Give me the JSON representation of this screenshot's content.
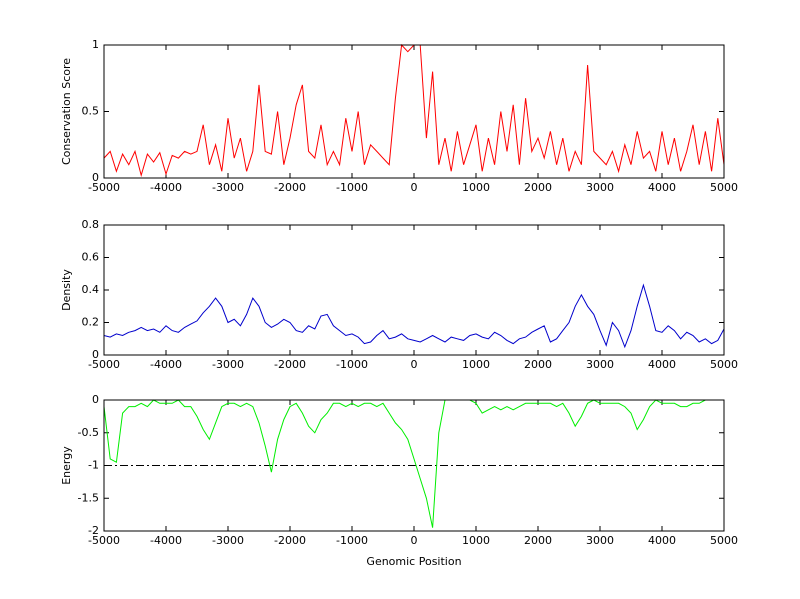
{
  "chart_data": [
    {
      "type": "line",
      "ylabel": "Conservation Score",
      "xlim": [
        -5000,
        5000
      ],
      "xticks": [
        -5000,
        -4000,
        -3000,
        -2000,
        -1000,
        0,
        1000,
        2000,
        3000,
        4000,
        5000
      ],
      "ylim": [
        0,
        1
      ],
      "yticks": [
        0,
        0.5,
        1
      ],
      "x": [
        -5000,
        -4900,
        -4800,
        -4700,
        -4600,
        -4500,
        -4400,
        -4300,
        -4200,
        -4100,
        -4000,
        -3900,
        -3800,
        -3700,
        -3600,
        -3500,
        -3400,
        -3300,
        -3200,
        -3100,
        -3000,
        -2900,
        -2800,
        -2700,
        -2600,
        -2500,
        -2400,
        -2300,
        -2200,
        -2100,
        -2000,
        -1900,
        -1800,
        -1700,
        -1600,
        -1500,
        -1400,
        -1300,
        -1200,
        -1100,
        -1000,
        -900,
        -800,
        -700,
        -600,
        -500,
        -400,
        -300,
        -200,
        -100,
        0,
        100,
        200,
        300,
        400,
        500,
        600,
        700,
        800,
        900,
        1000,
        1100,
        1200,
        1300,
        1400,
        1500,
        1600,
        1700,
        1800,
        1900,
        2000,
        2100,
        2200,
        2300,
        2400,
        2500,
        2600,
        2700,
        2800,
        2900,
        3000,
        3100,
        3200,
        3300,
        3400,
        3500,
        3600,
        3700,
        3800,
        3900,
        4000,
        4100,
        4200,
        4300,
        4400,
        4500,
        4600,
        4700,
        4800,
        4900,
        5000
      ],
      "series": [
        {
          "color": "#ff0000",
          "values": [
            0.15,
            0.2,
            0.05,
            0.18,
            0.1,
            0.2,
            0.02,
            0.18,
            0.12,
            0.19,
            0.03,
            0.17,
            0.15,
            0.2,
            0.18,
            0.2,
            0.4,
            0.1,
            0.25,
            0.05,
            0.45,
            0.15,
            0.3,
            0.05,
            0.2,
            0.7,
            0.2,
            0.18,
            0.5,
            0.1,
            0.3,
            0.55,
            0.7,
            0.2,
            0.15,
            0.4,
            0.1,
            0.2,
            0.1,
            0.45,
            0.2,
            0.5,
            0.1,
            0.25,
            0.2,
            0.15,
            0.1,
            0.6,
            1,
            0.95,
            1,
            1,
            0.3,
            0.8,
            0.1,
            0.3,
            0.05,
            0.35,
            0.1,
            0.25,
            0.4,
            0.05,
            0.3,
            0.1,
            0.5,
            0.2,
            0.55,
            0.1,
            0.6,
            0.2,
            0.3,
            0.15,
            0.35,
            0.1,
            0.3,
            0.05,
            0.2,
            0.1,
            0.85,
            0.2,
            0.15,
            0.1,
            0.2,
            0.05,
            0.25,
            0.1,
            0.35,
            0.15,
            0.2,
            0.05,
            0.35,
            0.1,
            0.3,
            0.05,
            0.2,
            0.4,
            0.1,
            0.35,
            0.05,
            0.45,
            0.1
          ]
        }
      ]
    },
    {
      "type": "line",
      "ylabel": "Density",
      "xlim": [
        -5000,
        5000
      ],
      "xticks": [
        -5000,
        -4000,
        -3000,
        -2000,
        -1000,
        0,
        1000,
        2000,
        3000,
        4000,
        5000
      ],
      "ylim": [
        0,
        0.8
      ],
      "yticks": [
        0,
        0.2,
        0.4,
        0.6,
        0.8
      ],
      "x": [
        -5000,
        -4900,
        -4800,
        -4700,
        -4600,
        -4500,
        -4400,
        -4300,
        -4200,
        -4100,
        -4000,
        -3900,
        -3800,
        -3700,
        -3600,
        -3500,
        -3400,
        -3300,
        -3200,
        -3100,
        -3000,
        -2900,
        -2800,
        -2700,
        -2600,
        -2500,
        -2400,
        -2300,
        -2200,
        -2100,
        -2000,
        -1900,
        -1800,
        -1700,
        -1600,
        -1500,
        -1400,
        -1300,
        -1200,
        -1100,
        -1000,
        -900,
        -800,
        -700,
        -600,
        -500,
        -400,
        -300,
        -200,
        -100,
        0,
        100,
        200,
        300,
        400,
        500,
        600,
        700,
        800,
        900,
        1000,
        1100,
        1200,
        1300,
        1400,
        1500,
        1600,
        1700,
        1800,
        1900,
        2000,
        2100,
        2200,
        2300,
        2400,
        2500,
        2600,
        2700,
        2800,
        2900,
        3000,
        3100,
        3200,
        3300,
        3400,
        3500,
        3600,
        3700,
        3800,
        3900,
        4000,
        4100,
        4200,
        4300,
        4400,
        4500,
        4600,
        4700,
        4800,
        4900,
        5000
      ],
      "series": [
        {
          "color": "#0000cc",
          "values": [
            0.12,
            0.11,
            0.13,
            0.12,
            0.14,
            0.15,
            0.17,
            0.15,
            0.16,
            0.14,
            0.18,
            0.15,
            0.14,
            0.17,
            0.19,
            0.21,
            0.26,
            0.3,
            0.35,
            0.3,
            0.2,
            0.22,
            0.18,
            0.25,
            0.35,
            0.3,
            0.2,
            0.17,
            0.19,
            0.22,
            0.2,
            0.15,
            0.14,
            0.18,
            0.16,
            0.24,
            0.25,
            0.18,
            0.15,
            0.12,
            0.13,
            0.11,
            0.07,
            0.08,
            0.12,
            0.15,
            0.1,
            0.11,
            0.13,
            0.1,
            0.09,
            0.08,
            0.1,
            0.12,
            0.1,
            0.08,
            0.11,
            0.1,
            0.09,
            0.12,
            0.13,
            0.11,
            0.1,
            0.14,
            0.12,
            0.09,
            0.07,
            0.1,
            0.11,
            0.14,
            0.16,
            0.18,
            0.08,
            0.1,
            0.15,
            0.2,
            0.3,
            0.37,
            0.3,
            0.25,
            0.15,
            0.06,
            0.2,
            0.15,
            0.05,
            0.15,
            0.3,
            0.43,
            0.3,
            0.15,
            0.14,
            0.18,
            0.15,
            0.1,
            0.14,
            0.12,
            0.08,
            0.1,
            0.07,
            0.09,
            0.16
          ]
        }
      ]
    },
    {
      "type": "line",
      "ylabel": "Energy",
      "xlabel": "Genomic Position",
      "xlim": [
        -5000,
        5000
      ],
      "xticks": [
        -5000,
        -4000,
        -3000,
        -2000,
        -1000,
        0,
        1000,
        2000,
        3000,
        4000,
        5000
      ],
      "ylim": [
        -2,
        0
      ],
      "yticks": [
        -2,
        -1.5,
        -1,
        -0.5,
        0
      ],
      "reference_line": -1,
      "x": [
        -5000,
        -4900,
        -4800,
        -4700,
        -4600,
        -4500,
        -4400,
        -4300,
        -4200,
        -4100,
        -4000,
        -3900,
        -3800,
        -3700,
        -3600,
        -3500,
        -3400,
        -3300,
        -3200,
        -3100,
        -3000,
        -2900,
        -2800,
        -2700,
        -2600,
        -2500,
        -2400,
        -2300,
        -2200,
        -2100,
        -2000,
        -1900,
        -1800,
        -1700,
        -1600,
        -1500,
        -1400,
        -1300,
        -1200,
        -1100,
        -1000,
        -900,
        -800,
        -700,
        -600,
        -500,
        -400,
        -300,
        -200,
        -100,
        0,
        100,
        200,
        300,
        400,
        500,
        600,
        700,
        800,
        900,
        1000,
        1100,
        1200,
        1300,
        1400,
        1500,
        1600,
        1700,
        1800,
        1900,
        2000,
        2100,
        2200,
        2300,
        2400,
        2500,
        2600,
        2700,
        2800,
        2900,
        3000,
        3100,
        3200,
        3300,
        3400,
        3500,
        3600,
        3700,
        3800,
        3900,
        4000,
        4100,
        4200,
        4300,
        4400,
        4500,
        4600,
        4700,
        4800,
        4900,
        5000
      ],
      "series": [
        {
          "color": "#00ee00",
          "values": [
            -0.1,
            -0.9,
            -0.95,
            -0.2,
            -0.1,
            -0.1,
            -0.05,
            -0.1,
            0,
            -0.05,
            -0.05,
            -0.05,
            0,
            -0.1,
            -0.1,
            -0.25,
            -0.45,
            -0.6,
            -0.35,
            -0.1,
            -0.05,
            -0.05,
            -0.1,
            -0.05,
            -0.1,
            -0.35,
            -0.7,
            -1.1,
            -0.6,
            -0.3,
            -0.1,
            -0.05,
            -0.2,
            -0.4,
            -0.5,
            -0.3,
            -0.2,
            -0.05,
            -0.05,
            -0.1,
            -0.05,
            -0.1,
            -0.05,
            -0.05,
            -0.1,
            -0.05,
            -0.2,
            -0.35,
            -0.45,
            -0.6,
            -0.9,
            -1.2,
            -1.5,
            -1.95,
            -0.5,
            0,
            0,
            0,
            0,
            0,
            -0.05,
            -0.2,
            -0.15,
            -0.1,
            -0.15,
            -0.1,
            -0.15,
            -0.1,
            -0.05,
            -0.05,
            -0.05,
            -0.05,
            -0.05,
            -0.1,
            -0.05,
            -0.2,
            -0.4,
            -0.25,
            -0.05,
            0,
            -0.05,
            -0.05,
            -0.05,
            -0.05,
            -0.1,
            -0.2,
            -0.45,
            -0.3,
            -0.1,
            0,
            -0.05,
            -0.05,
            -0.05,
            -0.1,
            -0.1,
            -0.05,
            -0.05,
            0,
            null,
            null,
            null
          ]
        }
      ]
    }
  ]
}
